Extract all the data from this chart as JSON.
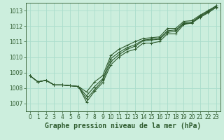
{
  "title": "Graphe pression niveau de la mer (hPa)",
  "background_color": "#cceedd",
  "grid_color": "#aaddcc",
  "line_color": "#2d5a2d",
  "xlim": [
    -0.5,
    23.5
  ],
  "ylim": [
    1006.5,
    1013.5
  ],
  "yticks": [
    1007,
    1008,
    1009,
    1010,
    1011,
    1012,
    1013
  ],
  "xticks": [
    0,
    1,
    2,
    3,
    4,
    5,
    6,
    7,
    8,
    9,
    10,
    11,
    12,
    13,
    14,
    15,
    16,
    17,
    18,
    19,
    20,
    21,
    22,
    23
  ],
  "series": [
    [
      1008.8,
      1008.4,
      1008.5,
      1008.2,
      1008.2,
      1008.15,
      1008.1,
      1007.1,
      1007.8,
      1008.35,
      1009.5,
      1010.0,
      1010.35,
      1010.5,
      1010.9,
      1010.9,
      1011.0,
      1011.5,
      1011.5,
      1012.1,
      1012.2,
      1012.55,
      1012.85,
      1013.2
    ],
    [
      1008.8,
      1008.4,
      1008.5,
      1008.2,
      1008.2,
      1008.15,
      1008.1,
      1007.3,
      1007.9,
      1008.5,
      1009.7,
      1010.15,
      1010.5,
      1010.7,
      1011.05,
      1011.1,
      1011.15,
      1011.6,
      1011.65,
      1012.15,
      1012.2,
      1012.6,
      1012.9,
      1013.25
    ],
    [
      1008.8,
      1008.4,
      1008.5,
      1008.2,
      1008.2,
      1008.15,
      1008.1,
      1007.5,
      1008.1,
      1008.6,
      1009.9,
      1010.3,
      1010.6,
      1010.8,
      1011.1,
      1011.15,
      1011.2,
      1011.7,
      1011.75,
      1012.2,
      1012.25,
      1012.65,
      1012.95,
      1013.3
    ],
    [
      1008.8,
      1008.4,
      1008.5,
      1008.2,
      1008.2,
      1008.15,
      1008.1,
      1007.75,
      1008.4,
      1008.8,
      1010.1,
      1010.5,
      1010.75,
      1011.0,
      1011.2,
      1011.25,
      1011.3,
      1011.85,
      1011.85,
      1012.3,
      1012.35,
      1012.7,
      1013.0,
      1013.3
    ]
  ],
  "marker": "+",
  "markersize": 3.5,
  "linewidth": 0.8,
  "title_fontsize": 7,
  "tick_fontsize": 5.5
}
